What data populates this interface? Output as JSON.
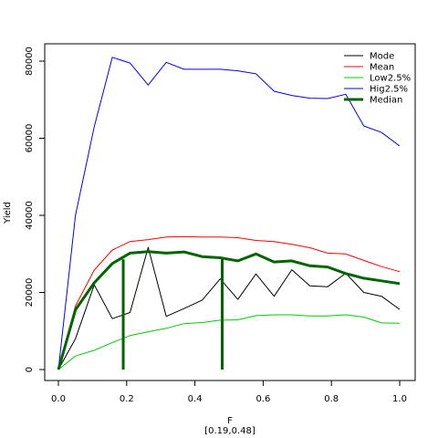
{
  "chart_data": {
    "type": "line",
    "xlabel": "F",
    "xlabel_sub": "[0.19,0.48]",
    "ylabel": "Yield",
    "xlim": [
      0,
      1
    ],
    "ylim": [
      0,
      82000
    ],
    "x_ticks": [
      0,
      0.2,
      0.4,
      0.6,
      0.8,
      1.0
    ],
    "x_tick_labels": [
      "0.0",
      "0.2",
      "0.4",
      "0.6",
      "0.8",
      "1.0"
    ],
    "y_ticks": [
      0,
      20000,
      40000,
      60000,
      80000
    ],
    "y_tick_labels": [
      "0",
      "20000",
      "40000",
      "60000",
      "80000"
    ],
    "grid": false,
    "legend_position": "top-right",
    "x": [
      0,
      0.05,
      0.105,
      0.158,
      0.21,
      0.263,
      0.316,
      0.368,
      0.421,
      0.474,
      0.526,
      0.579,
      0.632,
      0.684,
      0.737,
      0.789,
      0.842,
      0.895,
      0.947,
      1.0
    ],
    "series": [
      {
        "name": "Mode",
        "color": "#000000",
        "width": 1,
        "values": [
          0,
          8000,
          22000,
          13200,
          14800,
          31700,
          13800,
          15800,
          18000,
          23500,
          18200,
          24800,
          19000,
          25900,
          21700,
          21500,
          25000,
          20000,
          19000,
          15600
        ]
      },
      {
        "name": "Mean",
        "color": "#ff0000",
        "width": 1,
        "values": [
          0,
          16500,
          25800,
          31000,
          33200,
          33700,
          34400,
          34500,
          34400,
          34400,
          34200,
          33500,
          33200,
          32500,
          31600,
          30200,
          30000,
          28300,
          26700,
          25400
        ]
      },
      {
        "name": "Low2.5%",
        "color": "#00cc00",
        "width": 1,
        "values": [
          0,
          3500,
          5000,
          7000,
          8800,
          9800,
          10700,
          11900,
          12200,
          12800,
          12900,
          14000,
          14200,
          14200,
          13900,
          13900,
          14200,
          13600,
          12100,
          12000
        ]
      },
      {
        "name": "Hig2.5%",
        "color": "#0000ff",
        "width": 1,
        "values": [
          0,
          40000,
          63000,
          81000,
          79500,
          73800,
          79700,
          77900,
          77900,
          77900,
          77500,
          76700,
          72200,
          71100,
          70400,
          70300,
          71400,
          63200,
          61500,
          58000
        ]
      },
      {
        "name": "Median",
        "color": "#006400",
        "width": 3,
        "values": [
          0,
          15500,
          22500,
          27500,
          30200,
          30600,
          30200,
          30500,
          29300,
          29000,
          28200,
          30000,
          27900,
          28200,
          26900,
          26600,
          24900,
          23700,
          23000,
          22300
        ]
      }
    ],
    "vertical_lines": [
      {
        "x": 0.19,
        "y0": 0,
        "y1": 28600,
        "color": "#006400",
        "width": 3
      },
      {
        "x": 0.48,
        "y0": 0,
        "y1": 29000,
        "color": "#006400",
        "width": 3
      }
    ]
  }
}
